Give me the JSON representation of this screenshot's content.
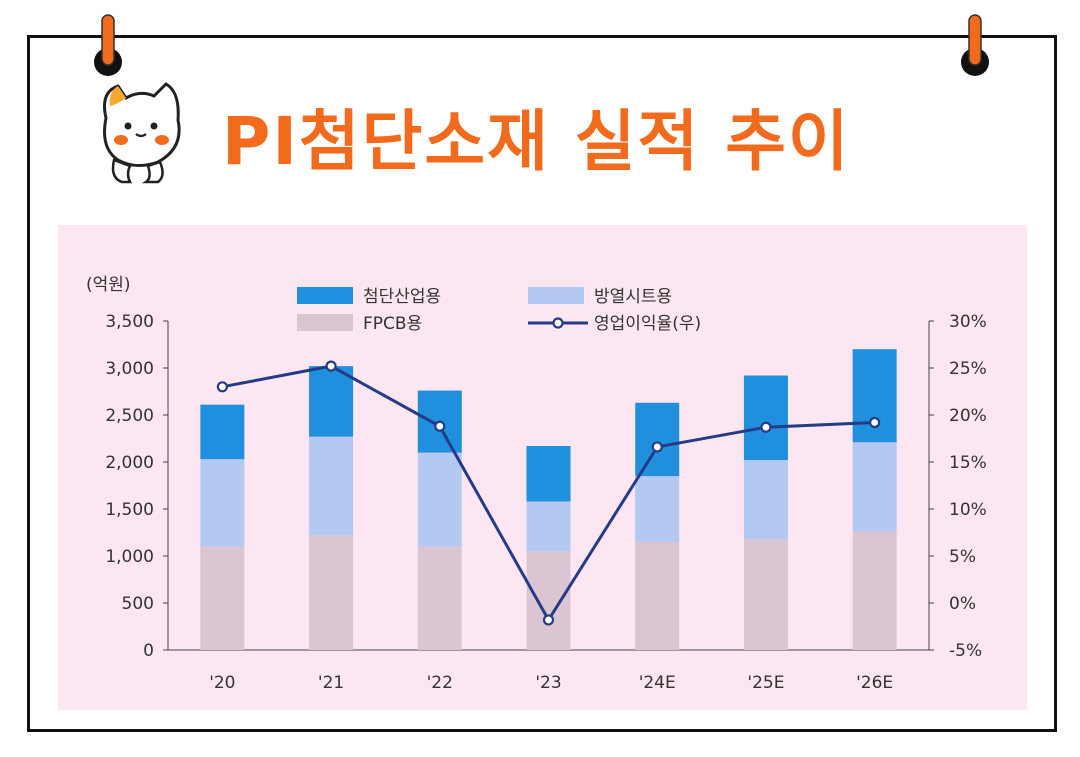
{
  "title": "PI첨단소재 실적 추이",
  "chart_data": {
    "type": "bar",
    "stacked": true,
    "unit_label": "(억원)",
    "categories": [
      "'20",
      "'21",
      "'22",
      "'23",
      "'24E",
      "'25E",
      "'26E"
    ],
    "series": [
      {
        "name": "FPCB용",
        "type": "bar",
        "color": "#dcc5d3",
        "values": [
          1100,
          1220,
          1100,
          1050,
          1150,
          1180,
          1260
        ]
      },
      {
        "name": "방열시트용",
        "type": "bar",
        "color": "#b3c9f2",
        "values": [
          930,
          1050,
          1000,
          530,
          700,
          840,
          950
        ]
      },
      {
        "name": "첨단산업용",
        "type": "bar",
        "color": "#2090de",
        "values": [
          580,
          750,
          660,
          590,
          780,
          900,
          990
        ]
      },
      {
        "name": "영업이익율(우)",
        "type": "line",
        "axis": "right",
        "color": "#243c85",
        "values": [
          23.0,
          25.2,
          18.8,
          -1.8,
          16.6,
          18.7,
          19.2
        ]
      }
    ],
    "y_left": {
      "min": 0,
      "max": 3500,
      "ticks": [
        "0",
        "500",
        "1,000",
        "1,500",
        "2,000",
        "2,500",
        "3,000",
        "3,500"
      ]
    },
    "y_right": {
      "min": -5,
      "max": 30,
      "ticks": [
        "-5%",
        "0%",
        "5%",
        "10%",
        "15%",
        "20%",
        "25%",
        "30%"
      ]
    },
    "legend_placement": "top-center",
    "grid": false
  }
}
